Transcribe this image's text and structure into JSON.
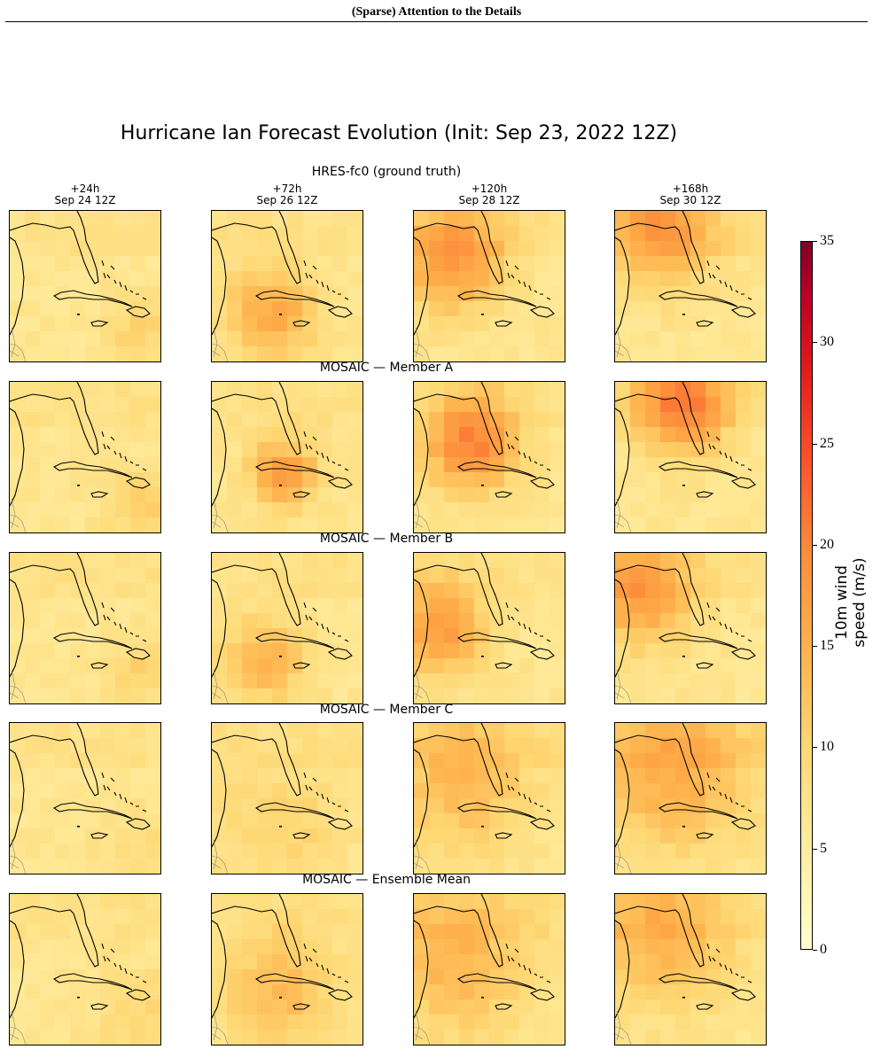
{
  "running_head": "(Sparse) Attention to the Details",
  "figure": {
    "title": "Hurricane Ian Forecast Evolution (Init: Sep 23, 2022 12Z)",
    "columns": [
      {
        "lead": "+24h",
        "date": "Sep 24 12Z"
      },
      {
        "lead": "+72h",
        "date": "Sep 26 12Z"
      },
      {
        "lead": "+120h",
        "date": "Sep 28 12Z"
      },
      {
        "lead": "+168h",
        "date": "Sep 30 12Z"
      }
    ],
    "rows": [
      {
        "title": "HRES-fc0 (ground truth)"
      },
      {
        "title": "MOSAIC — Member A"
      },
      {
        "title": "MOSAIC — Member B"
      },
      {
        "title": "MOSAIC — Member C"
      },
      {
        "title": "MOSAIC — Ensemble Mean"
      }
    ]
  },
  "colorbar": {
    "label": "10m wind speed (m/s)",
    "ticks": [
      "0",
      "5",
      "10",
      "15",
      "20",
      "25",
      "30",
      "35"
    ],
    "range": [
      0,
      35
    ],
    "colormap": "YlOrRd"
  },
  "colors": {
    "low": "#ffffcc",
    "mid": "#feb24c",
    "high": "#e31a1c",
    "max": "#800026"
  },
  "chart_data": {
    "type": "heatmap",
    "title": "Hurricane Ian Forecast Evolution (Init: Sep 23, 2022 12Z)",
    "rows": [
      "HRES-fc0 (ground truth)",
      "MOSAIC — Member A",
      "MOSAIC — Member B",
      "MOSAIC — Member C",
      "MOSAIC — Ensemble Mean"
    ],
    "columns": [
      "+24h Sep 24 12Z",
      "+72h Sep 26 12Z",
      "+120h Sep 28 12Z",
      "+168h Sep 30 12Z"
    ],
    "zlabel": "10m wind speed (m/s)",
    "zlim": [
      0,
      35
    ],
    "grid": "10x10",
    "peak_wind_estimates": [
      [
        10,
        15,
        18,
        17
      ],
      [
        11,
        17,
        20,
        20
      ],
      [
        10,
        14,
        17,
        17
      ],
      [
        8,
        10,
        13,
        15
      ],
      [
        9,
        13,
        14,
        14
      ]
    ]
  }
}
